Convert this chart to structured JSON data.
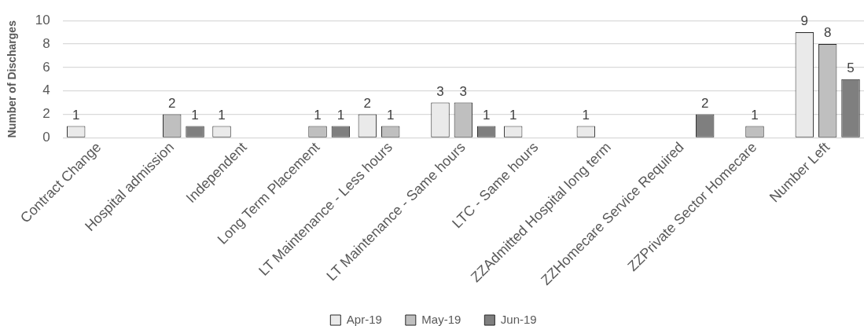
{
  "chart_data": {
    "type": "bar",
    "ylabel": "Number of Discharges",
    "categories": [
      "Contract Change",
      "Hospital admission",
      "Independent",
      "Long Term Placement",
      "LT Maintenance - Less hours",
      "LT Maintenance - Same hours",
      "LTC - Same hours",
      "ZZAdmitted Hospital long term",
      "ZZHomecare Service Required",
      "ZZPrivate Sector Homecare",
      "Number Left"
    ],
    "series": [
      {
        "name": "Apr-19",
        "color": "#eaeaea",
        "values": [
          1,
          null,
          1,
          null,
          2,
          3,
          1,
          1,
          null,
          null,
          9
        ]
      },
      {
        "name": "May-19",
        "color": "#bfbfbf",
        "values": [
          null,
          2,
          null,
          1,
          1,
          3,
          null,
          null,
          null,
          1,
          8
        ]
      },
      {
        "name": "Jun-19",
        "color": "#7f7f7f",
        "values": [
          null,
          1,
          null,
          1,
          null,
          1,
          null,
          null,
          2,
          null,
          5
        ]
      }
    ],
    "ylim": [
      0,
      10
    ],
    "yticks": [
      0,
      2,
      4,
      6,
      8,
      10
    ],
    "grid": "y",
    "legend": "bottom",
    "data_labels": true
  }
}
